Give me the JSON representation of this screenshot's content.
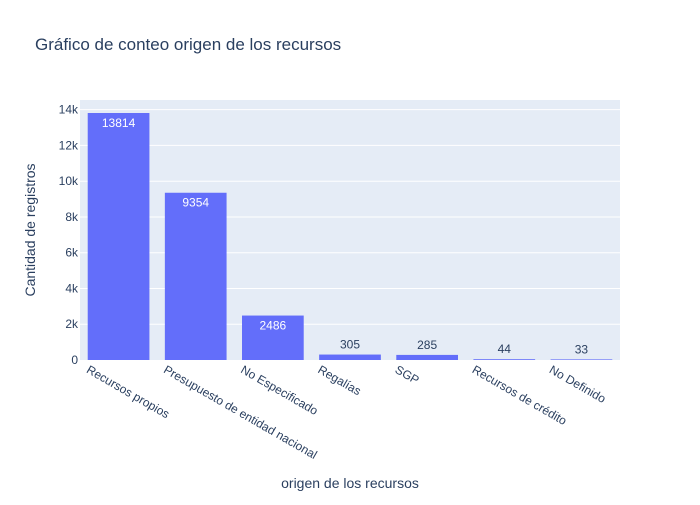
{
  "chart_data": {
    "type": "bar",
    "title": "Gráfico de conteo origen de los recursos",
    "xlabel": "origen de los recursos",
    "ylabel": "Cantidad de registros",
    "categories": [
      "Recursos propios",
      "Presupuesto de entidad nacional",
      "No Especificado",
      "Regalías",
      "SGP",
      "Recursos de crédito",
      "No Definido"
    ],
    "values": [
      13814,
      9354,
      2486,
      305,
      285,
      44,
      33
    ],
    "value_labels": [
      "13814",
      "9354",
      "2486",
      "305",
      "285",
      "44",
      "33"
    ],
    "ylim": [
      0,
      14541
    ],
    "yticks": [
      0,
      2000,
      4000,
      6000,
      8000,
      10000,
      12000,
      14000
    ],
    "ytick_labels": [
      "0",
      "2k",
      "4k",
      "6k",
      "8k",
      "10k",
      "12k",
      "14k"
    ],
    "grid": true,
    "bar_color": "#636efa",
    "plot_bg": "#e5ecf6"
  }
}
